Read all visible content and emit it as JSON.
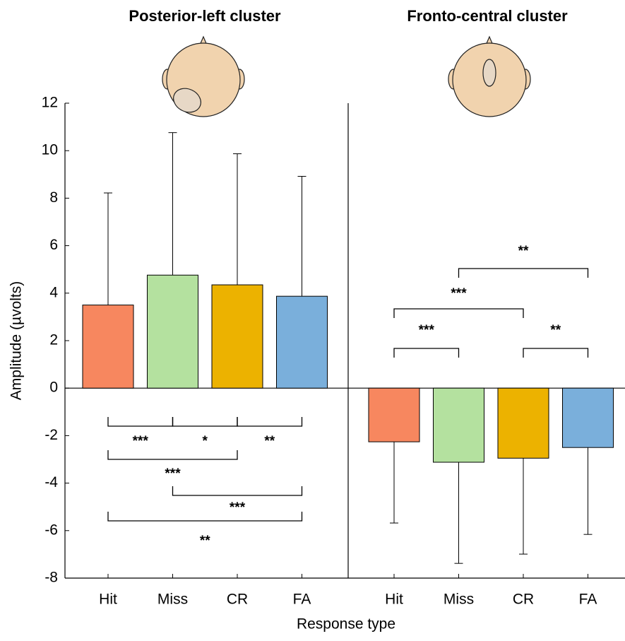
{
  "chart_data": [
    {
      "type": "bar",
      "title": "Posterior-left cluster",
      "ylabel": "Amplitude (µvolts)",
      "xlabel": "Response type",
      "categories": [
        "Hit",
        "Miss",
        "CR",
        "FA"
      ],
      "values": [
        3.5,
        4.76,
        4.35,
        3.87
      ],
      "errors": [
        4.72,
        6.0,
        5.52,
        5.05
      ],
      "colors": [
        "#f7875f",
        "#b4e19f",
        "#ecb200",
        "#7aafdb"
      ],
      "ylim": [
        -8,
        12
      ],
      "yticks": [
        -8,
        -6,
        -4,
        -2,
        0,
        2,
        4,
        6,
        8,
        10,
        12
      ],
      "annotations": [
        {
          "from": 0,
          "to": 1,
          "label": "***"
        },
        {
          "from": 1,
          "to": 2,
          "label": "*"
        },
        {
          "from": 2,
          "to": 3,
          "label": "**"
        },
        {
          "from": 0,
          "to": 2,
          "label": "***"
        },
        {
          "from": 1,
          "to": 3,
          "label": "***"
        },
        {
          "from": 0,
          "to": 3,
          "label": "**"
        }
      ]
    },
    {
      "type": "bar",
      "title": "Fronto-central cluster",
      "categories": [
        "Hit",
        "Miss",
        "CR",
        "FA"
      ],
      "values": [
        -2.26,
        -3.12,
        -2.95,
        -2.5
      ],
      "errors": [
        3.42,
        4.26,
        4.04,
        3.66
      ],
      "colors": [
        "#f7875f",
        "#b4e19f",
        "#ecb200",
        "#7aafdb"
      ],
      "ylim": [
        -8,
        12
      ],
      "annotations": [
        {
          "from": 0,
          "to": 1,
          "label": "***"
        },
        {
          "from": 0,
          "to": 2,
          "label": "***"
        },
        {
          "from": 2,
          "to": 3,
          "label": "**"
        },
        {
          "from": 1,
          "to": 3,
          "label": "**"
        }
      ]
    }
  ]
}
